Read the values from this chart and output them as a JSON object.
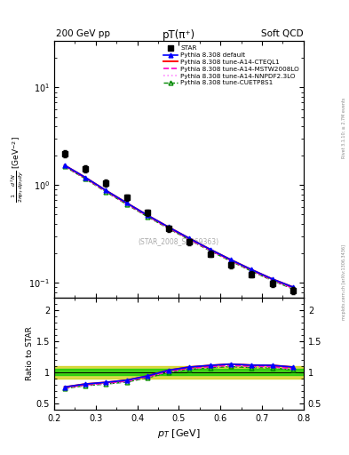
{
  "title_left": "200 GeV pp",
  "title_right": "Soft QCD",
  "plot_title": "pT(π⁺)",
  "xlabel": "p_T [GeV]",
  "ratio_ylabel": "Ratio to STAR",
  "watermark": "(STAR_2008_S7869363)",
  "rivet_label": "Rivet 3.1.10; ≥ 2.7M events",
  "mcplots_label": "mcplots.cern.ch [arXiv:1306.3436]",
  "xmin": 0.2,
  "xmax": 0.8,
  "pt_values": [
    0.225,
    0.275,
    0.325,
    0.375,
    0.425,
    0.475,
    0.525,
    0.575,
    0.625,
    0.675,
    0.725,
    0.775
  ],
  "star_data": [
    2.1,
    1.48,
    1.05,
    0.75,
    0.52,
    0.36,
    0.263,
    0.198,
    0.152,
    0.122,
    0.098,
    0.083
  ],
  "star_errors": [
    0.18,
    0.12,
    0.08,
    0.055,
    0.038,
    0.026,
    0.019,
    0.014,
    0.011,
    0.009,
    0.008,
    0.007
  ],
  "pythia_default": [
    1.6,
    1.2,
    0.88,
    0.655,
    0.49,
    0.372,
    0.285,
    0.22,
    0.172,
    0.136,
    0.109,
    0.09
  ],
  "pythia_cteql1": [
    1.6,
    1.2,
    0.88,
    0.655,
    0.49,
    0.372,
    0.285,
    0.22,
    0.172,
    0.136,
    0.109,
    0.09
  ],
  "pythia_mstw": [
    1.58,
    1.18,
    0.865,
    0.644,
    0.482,
    0.366,
    0.28,
    0.216,
    0.169,
    0.134,
    0.107,
    0.088
  ],
  "pythia_nnpdf": [
    1.57,
    1.175,
    0.86,
    0.64,
    0.479,
    0.364,
    0.278,
    0.214,
    0.168,
    0.133,
    0.106,
    0.087
  ],
  "pythia_cuetp": [
    1.55,
    1.16,
    0.85,
    0.632,
    0.473,
    0.359,
    0.275,
    0.212,
    0.166,
    0.131,
    0.105,
    0.086
  ],
  "ratio_default": [
    0.762,
    0.811,
    0.838,
    0.873,
    0.942,
    1.033,
    1.084,
    1.111,
    1.132,
    1.115,
    1.112,
    1.084
  ],
  "ratio_cteql1": [
    0.762,
    0.811,
    0.838,
    0.873,
    0.942,
    1.033,
    1.084,
    1.111,
    1.132,
    1.115,
    1.112,
    1.084
  ],
  "ratio_mstw": [
    0.752,
    0.797,
    0.824,
    0.859,
    0.927,
    1.017,
    1.065,
    1.091,
    1.112,
    1.098,
    1.092,
    1.06
  ],
  "ratio_nnpdf": [
    0.748,
    0.793,
    0.819,
    0.853,
    0.921,
    1.011,
    1.057,
    1.081,
    1.105,
    1.09,
    1.082,
    1.048
  ],
  "ratio_cuetp": [
    0.738,
    0.784,
    0.81,
    0.843,
    0.91,
    0.997,
    1.046,
    1.071,
    1.092,
    1.074,
    1.071,
    1.036
  ],
  "color_default": "#0000ff",
  "color_cteql1": "#ff0000",
  "color_mstw": "#ff00cc",
  "color_nnpdf": "#ff88ff",
  "color_cuetp": "#008800",
  "band_green": "#00cc00",
  "band_yellow": "#cccc00"
}
